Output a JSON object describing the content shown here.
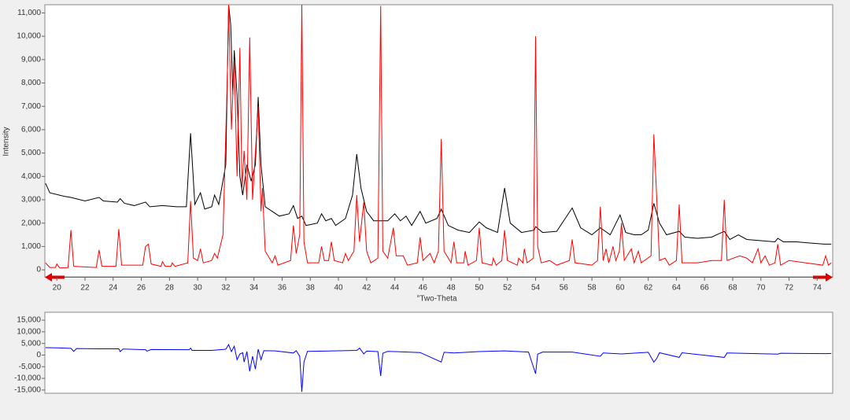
{
  "chart_data": [
    {
      "type": "line",
      "xlabel": "°Two-Theta",
      "ylabel": "Intensity",
      "xlim": [
        19.15,
        75.1
      ],
      "ylim": [
        -300,
        11350
      ],
      "xticks": [
        20,
        22,
        24,
        26,
        28,
        30,
        32,
        34,
        36,
        38,
        40,
        42,
        44,
        46,
        48,
        50,
        52,
        54,
        56,
        58,
        60,
        62,
        64,
        66,
        68,
        70,
        72,
        74
      ],
      "yticks": [
        0,
        {
          "value": 1000,
          "label": "1,000"
        },
        {
          "value": 2000,
          "label": "2,000"
        },
        {
          "value": 3000,
          "label": "3,000"
        },
        {
          "value": 4000,
          "label": "4,000"
        },
        {
          "value": 5000,
          "label": "5,000"
        },
        {
          "value": 6000,
          "label": "6,000"
        },
        {
          "value": 7000,
          "label": "7,000"
        },
        {
          "value": 8000,
          "label": "8,000"
        },
        {
          "value": 9000,
          "label": "9,000"
        },
        {
          "value": 10000,
          "label": "10,000"
        },
        {
          "value": 11000,
          "label": "11,000"
        }
      ],
      "series": [
        {
          "color": "#000000",
          "x": [
            19.2,
            19.5,
            20.5,
            21.0,
            22.0,
            23.0,
            23.3,
            24.3,
            24.5,
            24.8,
            25.5,
            26.3,
            26.6,
            27.5,
            28.5,
            29.2,
            29.5,
            29.8,
            30.2,
            30.5,
            31.0,
            31.2,
            31.5,
            32.0,
            32.2,
            32.35,
            32.5,
            32.6,
            32.8,
            33.0,
            33.2,
            33.5,
            33.8,
            34.1,
            34.3,
            34.5,
            34.8,
            35.3,
            35.8,
            36.5,
            36.8,
            37.1,
            37.4,
            37.7,
            38.5,
            38.8,
            39.1,
            39.5,
            39.8,
            40.5,
            41.0,
            41.3,
            41.6,
            42.0,
            42.5,
            43.0,
            43.5,
            44.0,
            44.4,
            44.8,
            45.2,
            45.8,
            46.2,
            47.0,
            47.3,
            47.8,
            48.5,
            49.3,
            50.0,
            50.5,
            51.3,
            51.8,
            52.2,
            53.0,
            53.9,
            54.0,
            54.5,
            55.5,
            56.6,
            57.2,
            58.0,
            58.6,
            59.3,
            60.0,
            60.4,
            61.0,
            61.5,
            62.0,
            62.4,
            62.8,
            63.3,
            64.2,
            64.6,
            65.5,
            66.5,
            67.4,
            67.8,
            68.4,
            69.0,
            70.0,
            71.0,
            71.2,
            71.6,
            72.5,
            73.5,
            74.5,
            75.0
          ],
          "values": [
            3700,
            3300,
            3150,
            3100,
            2950,
            3100,
            2950,
            2900,
            3050,
            2850,
            2750,
            2900,
            2700,
            2750,
            2700,
            2700,
            5850,
            2800,
            3300,
            2600,
            2700,
            3200,
            2800,
            4500,
            11350,
            10500,
            7500,
            9400,
            7500,
            4000,
            3200,
            4500,
            3800,
            4500,
            7400,
            4500,
            2700,
            2500,
            2300,
            2400,
            2750,
            2200,
            2300,
            1900,
            2000,
            2400,
            2100,
            2200,
            1900,
            2200,
            3200,
            4950,
            3500,
            2500,
            2100,
            2100,
            2100,
            2400,
            2100,
            2300,
            1900,
            2500,
            2000,
            2200,
            2600,
            1900,
            1700,
            1600,
            2050,
            1800,
            1600,
            3500,
            2000,
            1600,
            1700,
            1850,
            1600,
            1650,
            2650,
            1800,
            1500,
            1800,
            1500,
            2350,
            1600,
            1500,
            1500,
            1700,
            2850,
            2000,
            1500,
            1650,
            1400,
            1350,
            1400,
            1650,
            1300,
            1500,
            1300,
            1250,
            1200,
            1350,
            1200,
            1200,
            1150,
            1100,
            1100
          ]
        },
        {
          "color": "#ff0000",
          "x": [
            19.2,
            19.5,
            19.9,
            20.0,
            20.2,
            20.8,
            21.0,
            21.2,
            22.8,
            23.0,
            23.2,
            24.2,
            24.4,
            24.6,
            26.1,
            26.3,
            26.5,
            26.7,
            27.4,
            27.5,
            27.7,
            28.1,
            28.2,
            28.4,
            29.3,
            29.5,
            29.7,
            30.0,
            30.2,
            30.4,
            31.0,
            31.2,
            31.4,
            31.8,
            32.1,
            32.2,
            32.4,
            32.6,
            32.8,
            33.0,
            33.15,
            33.3,
            33.5,
            33.7,
            33.9,
            34.3,
            34.5,
            34.6,
            34.8,
            35.3,
            35.5,
            35.7,
            36.6,
            36.8,
            37.0,
            37.25,
            37.4,
            37.55,
            37.8,
            38.6,
            38.8,
            39.0,
            39.3,
            39.5,
            39.7,
            40.3,
            40.5,
            40.7,
            41.1,
            41.3,
            41.5,
            41.8,
            42.0,
            42.3,
            42.8,
            43.0,
            43.15,
            43.5,
            43.9,
            44.1,
            44.6,
            44.9,
            45.6,
            45.8,
            46.0,
            46.5,
            46.8,
            47.1,
            47.3,
            47.5,
            48.0,
            48.2,
            48.4,
            48.9,
            49.0,
            49.2,
            49.8,
            50.0,
            50.2,
            50.9,
            51.0,
            51.2,
            51.6,
            51.8,
            52.0,
            52.7,
            52.8,
            53.1,
            53.2,
            53.4,
            53.85,
            54.0,
            54.15,
            54.4,
            55.0,
            55.5,
            56.4,
            56.6,
            56.8,
            58.0,
            58.4,
            58.6,
            58.8,
            59.0,
            59.2,
            59.5,
            59.7,
            59.95,
            60.1,
            60.3,
            60.8,
            61.0,
            61.3,
            61.5,
            62.2,
            62.4,
            62.55,
            62.8,
            63.2,
            63.5,
            64.0,
            64.2,
            64.4,
            65.5,
            66.5,
            67.2,
            67.4,
            67.6,
            68.5,
            69.0,
            69.4,
            69.8,
            70.0,
            70.3,
            70.6,
            71.0,
            71.2,
            71.4,
            72.0,
            74.4,
            74.6,
            74.8,
            75.0
          ],
          "values": [
            300,
            100,
            100,
            250,
            80,
            100,
            1700,
            150,
            100,
            850,
            150,
            150,
            1750,
            200,
            200,
            1000,
            1100,
            250,
            150,
            350,
            150,
            150,
            300,
            150,
            300,
            2950,
            500,
            400,
            900,
            300,
            400,
            700,
            500,
            1500,
            8000,
            11350,
            6000,
            9000,
            4000,
            9500,
            3500,
            5100,
            3000,
            9950,
            3000,
            7000,
            2500,
            3500,
            800,
            300,
            600,
            200,
            400,
            1900,
            700,
            1500,
            11350,
            1200,
            300,
            300,
            1000,
            400,
            400,
            1200,
            400,
            300,
            700,
            400,
            800,
            3200,
            1200,
            2900,
            800,
            300,
            500,
            11300,
            800,
            500,
            1800,
            600,
            600,
            200,
            300,
            1400,
            400,
            700,
            300,
            800,
            5600,
            800,
            300,
            1200,
            300,
            300,
            800,
            200,
            400,
            1800,
            300,
            200,
            500,
            200,
            400,
            1700,
            400,
            200,
            500,
            300,
            900,
            300,
            500,
            10000,
            1000,
            300,
            400,
            200,
            400,
            1300,
            300,
            200,
            400,
            2700,
            400,
            900,
            300,
            1000,
            400,
            800,
            2000,
            400,
            900,
            300,
            800,
            300,
            600,
            5800,
            3800,
            400,
            500,
            200,
            400,
            2800,
            300,
            300,
            400,
            400,
            3000,
            400,
            600,
            500,
            300,
            900,
            300,
            600,
            200,
            300,
            1100,
            200,
            400,
            200,
            600,
            200,
            300
          ]
        }
      ]
    },
    {
      "type": "line",
      "xlim": [
        19.15,
        75.1
      ],
      "ylim": [
        -16400,
        18400
      ],
      "yticks": [
        {
          "value": 15000,
          "label": "15,000"
        },
        {
          "value": 10000,
          "label": "10,000"
        },
        {
          "value": 5000,
          "label": "5,000"
        },
        0,
        {
          "value": -5000,
          "label": "-5,000"
        },
        {
          "value": -10000,
          "label": "-10,000"
        },
        {
          "value": -15000,
          "label": "-15,000"
        }
      ],
      "series": [
        {
          "color": "#0000ff",
          "x": [
            19.2,
            20.0,
            21.0,
            21.2,
            21.4,
            23.0,
            24.4,
            24.5,
            24.7,
            26.3,
            26.4,
            26.7,
            29.4,
            29.5,
            29.6,
            31.0,
            32.0,
            32.2,
            32.4,
            32.6,
            32.8,
            33.0,
            33.2,
            33.3,
            33.5,
            33.7,
            33.9,
            34.1,
            34.3,
            34.5,
            34.7,
            35.5,
            36.8,
            37.0,
            37.25,
            37.4,
            37.55,
            37.8,
            39.0,
            41.3,
            41.5,
            41.8,
            42.0,
            42.8,
            43.0,
            43.15,
            43.5,
            45.8,
            47.3,
            47.5,
            48.2,
            50.0,
            51.8,
            53.5,
            54.0,
            54.15,
            54.5,
            56.6,
            58.6,
            58.8,
            60.1,
            62.0,
            62.4,
            62.6,
            62.8,
            64.2,
            64.4,
            67.4,
            67.6,
            71.2,
            71.4,
            74.6,
            75.0
          ],
          "values": [
            3200,
            3100,
            2900,
            1600,
            2800,
            2700,
            2700,
            1500,
            2600,
            2300,
            1700,
            2400,
            2300,
            3000,
            2000,
            2000,
            2500,
            4500,
            1500,
            3800,
            -2000,
            500,
            1000,
            -3000,
            1500,
            -7000,
            -500,
            -6000,
            2500,
            -2000,
            1900,
            1800,
            900,
            1900,
            -500,
            -15800,
            -3000,
            1600,
            1700,
            2000,
            3000,
            500,
            1700,
            1500,
            -9000,
            800,
            1600,
            1100,
            -3000,
            1200,
            900,
            1500,
            1800,
            1300,
            -8000,
            400,
            1300,
            1300,
            -500,
            900,
            500,
            1200,
            -3000,
            -1500,
            1000,
            -1000,
            1000,
            -1000,
            900,
            400,
            800,
            600,
            700
          ]
        }
      ]
    }
  ]
}
